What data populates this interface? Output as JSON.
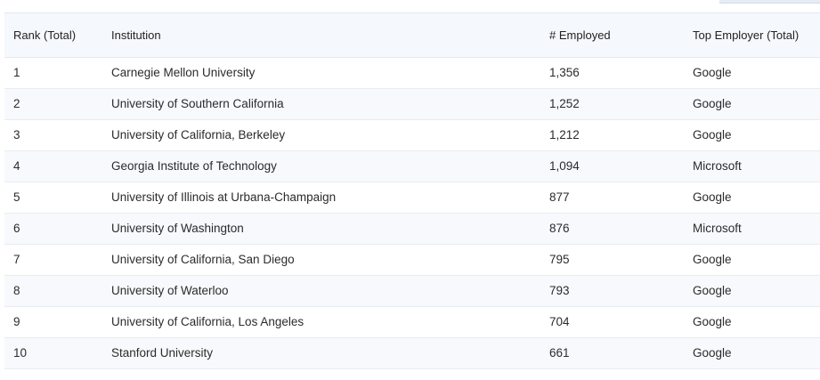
{
  "table": {
    "headers": [
      "Rank (Total)",
      "Institution",
      "# Employed",
      "Top Employer (Total)"
    ],
    "rows": [
      {
        "rank": "1",
        "institution": "Carnegie Mellon University",
        "employed": "1,356",
        "top_employer": "Google"
      },
      {
        "rank": "2",
        "institution": "University of Southern California",
        "employed": "1,252",
        "top_employer": "Google"
      },
      {
        "rank": "3",
        "institution": "University of California, Berkeley",
        "employed": "1,212",
        "top_employer": "Google"
      },
      {
        "rank": "4",
        "institution": "Georgia Institute of Technology",
        "employed": "1,094",
        "top_employer": "Microsoft"
      },
      {
        "rank": "5",
        "institution": "University of Illinois at Urbana-Champaign",
        "employed": "877",
        "top_employer": "Google"
      },
      {
        "rank": "6",
        "institution": "University of Washington",
        "employed": "876",
        "top_employer": "Microsoft"
      },
      {
        "rank": "7",
        "institution": "University of California, San Diego",
        "employed": "795",
        "top_employer": "Google"
      },
      {
        "rank": "8",
        "institution": "University of Waterloo",
        "employed": "793",
        "top_employer": "Google"
      },
      {
        "rank": "9",
        "institution": "University of California, Los Angeles",
        "employed": "704",
        "top_employer": "Google"
      },
      {
        "rank": "10",
        "institution": "Stanford University",
        "employed": "661",
        "top_employer": "Google"
      }
    ]
  },
  "colors": {
    "header_bg": "#f5f8fc",
    "row_alt_bg": "#f7f9fc",
    "border": "#e3e8ef",
    "text": "#2b2b2b"
  }
}
